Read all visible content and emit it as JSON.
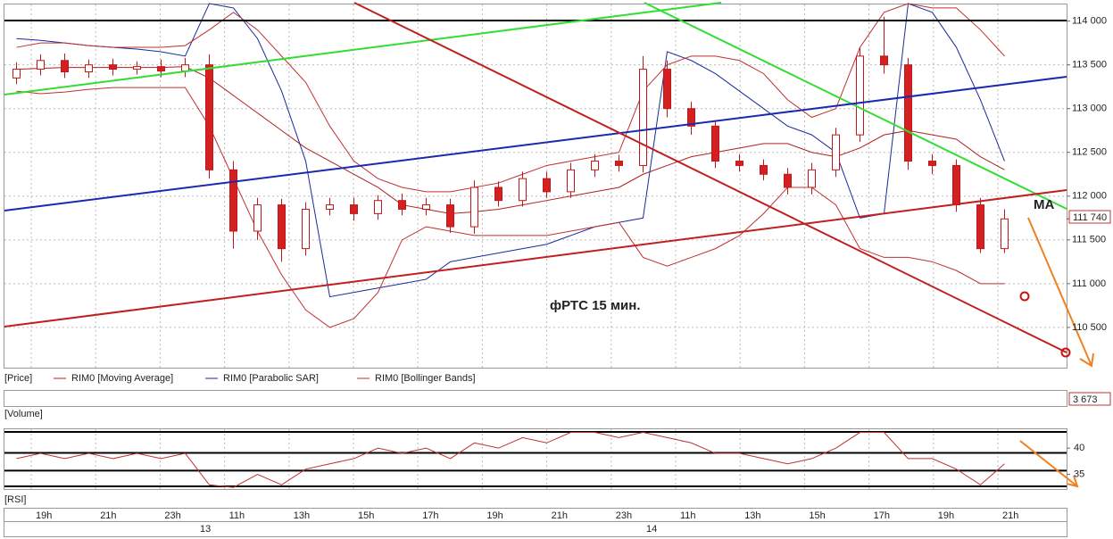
{
  "chart_data": {
    "type": "candlestick",
    "panel_labels": {
      "price": "[Price]",
      "volume": "[Volume]",
      "rsi": "[RSI]"
    },
    "annotations": [
      "фРТС   15 мин.",
      "MA"
    ],
    "x_labels": [
      "19h",
      "21h",
      "23h",
      "11h",
      "13h",
      "15h",
      "17h",
      "19h",
      "21h",
      "23h",
      "11h",
      "13h",
      "15h",
      "17h",
      "19h",
      "21h"
    ],
    "date_labels": [
      "13",
      "14"
    ],
    "ylim": [
      110040,
      114190
    ],
    "yticks": [
      {
        "value": 110500,
        "label": "110 500"
      },
      {
        "value": 111000,
        "label": "111 000"
      },
      {
        "value": 111500,
        "label": "111 500"
      },
      {
        "value": 112000,
        "label": "112 000"
      },
      {
        "value": 112500,
        "label": "112 500"
      },
      {
        "value": 113000,
        "label": "113 000"
      },
      {
        "value": 113500,
        "label": "113 500"
      },
      {
        "value": 114000,
        "label": "114 000"
      }
    ],
    "grid": true,
    "up_color": "#ffffff",
    "down_color": "#d42020",
    "candle_outline": "#c01818",
    "last_price": {
      "value": 111740,
      "label": "111 740"
    },
    "open": [
      113350,
      113450,
      113550,
      113420,
      113500,
      113450,
      113480,
      113430,
      113500,
      112300,
      111600,
      111900,
      111400,
      111850,
      111900,
      111800,
      111950,
      111850,
      111900,
      111650,
      112100,
      111950,
      112200,
      112050,
      112300,
      112400,
      112350,
      113450,
      113000,
      112800,
      112400,
      112350,
      112250,
      112100,
      112300,
      112700,
      113600,
      113500,
      112400,
      112350,
      111900,
      111400
    ],
    "high": [
      113530,
      113620,
      113630,
      113560,
      113570,
      113540,
      113560,
      113580,
      113620,
      112400,
      111980,
      111970,
      111930,
      111980,
      111980,
      112010,
      112030,
      111980,
      111970,
      112180,
      112170,
      112280,
      112280,
      112380,
      112480,
      112470,
      113600,
      113550,
      113080,
      112870,
      112480,
      112420,
      112320,
      112380,
      112780,
      113700,
      114050,
      113580,
      112480,
      112420,
      111980,
      111850
    ],
    "low": [
      113280,
      113380,
      113350,
      113350,
      113380,
      113390,
      113360,
      113360,
      112200,
      111400,
      111500,
      111250,
      111320,
      111780,
      111720,
      111730,
      111780,
      111780,
      111580,
      111570,
      111880,
      111880,
      111980,
      111980,
      112220,
      112280,
      112270,
      112900,
      112700,
      112320,
      112280,
      112180,
      112020,
      112020,
      112220,
      112620,
      113400,
      112300,
      112250,
      111820,
      111350,
      111350
    ],
    "close": [
      113450,
      113550,
      113420,
      113500,
      113450,
      113480,
      113430,
      113500,
      112300,
      111600,
      111900,
      111400,
      111850,
      111900,
      111800,
      111950,
      111850,
      111900,
      111650,
      112100,
      111950,
      112200,
      112050,
      112300,
      112400,
      112350,
      113450,
      113000,
      112800,
      112400,
      112350,
      112250,
      112100,
      112300,
      112700,
      113600,
      113500,
      112400,
      112350,
      111900,
      111400,
      111740
    ],
    "series": [
      {
        "name": "RIM0 [Moving Average]",
        "color": "#b02020",
        "values": [
          113450,
          113460,
          113470,
          113470,
          113470,
          113470,
          113470,
          113480,
          113350,
          113150,
          112950,
          112750,
          112550,
          112400,
          112250,
          112100,
          111900,
          111850,
          111800,
          111820,
          111850,
          111900,
          111950,
          112000,
          112050,
          112100,
          112250,
          112350,
          112450,
          112500,
          112550,
          112600,
          112600,
          112500,
          112450,
          112550,
          112700,
          112750,
          112700,
          112650,
          112450,
          112300
        ]
      },
      {
        "name": "RIM0 [Parabolic SAR]",
        "color": "#1a2a9a",
        "values": [
          113800,
          113780,
          113750,
          113720,
          113700,
          113680,
          113650,
          113600,
          114200,
          114150,
          113800,
          113200,
          112400,
          110850,
          110900,
          110950,
          111000,
          111050,
          111250,
          111300,
          111350,
          111400,
          111450,
          111550,
          111650,
          111700,
          111750,
          113650,
          113550,
          113400,
          113200,
          113000,
          112800,
          112700,
          112500,
          111750,
          111800,
          114200,
          114100,
          113700,
          113100,
          112400
        ]
      },
      {
        "name": "RIM0 [Bollinger Bands]",
        "color": "#c03030",
        "upper": [
          113700,
          113750,
          113750,
          113720,
          113700,
          113700,
          113700,
          113720,
          113900,
          114100,
          113900,
          113600,
          113300,
          112800,
          112400,
          112200,
          112100,
          112050,
          112050,
          112100,
          112150,
          112250,
          112350,
          112400,
          112450,
          112500,
          113200,
          113500,
          113600,
          113600,
          113550,
          113400,
          113100,
          112900,
          113000,
          113700,
          114100,
          114200,
          114150,
          114150,
          113900,
          113600
        ],
        "lower": [
          113200,
          113170,
          113190,
          113220,
          113240,
          113240,
          113240,
          113240,
          112800,
          112200,
          111600,
          111100,
          110700,
          110500,
          110600,
          110900,
          111500,
          111650,
          111600,
          111550,
          111550,
          111550,
          111550,
          111600,
          111650,
          111700,
          111300,
          111200,
          111300,
          111400,
          111550,
          111800,
          112100,
          112100,
          111900,
          111400,
          111300,
          111300,
          111250,
          111150,
          111000,
          111000
        ]
      }
    ],
    "volume_last": {
      "value": 3673,
      "label": "3 673"
    },
    "rsi": {
      "color": "#c03030",
      "ylim": [
        32.2,
        43.6
      ],
      "yticks": [
        35,
        40
      ],
      "levels": [
        43.1,
        39.1,
        35.7,
        32.7
      ],
      "values": [
        38,
        39,
        38,
        39,
        38,
        39,
        38,
        39,
        33,
        32.5,
        35,
        33,
        36,
        37,
        38,
        40,
        39,
        40,
        38,
        41,
        40,
        42,
        41,
        43,
        43,
        42,
        43,
        42,
        41,
        39,
        39,
        38,
        37,
        38,
        40,
        43,
        43,
        38,
        38,
        36,
        33,
        37
      ]
    }
  }
}
